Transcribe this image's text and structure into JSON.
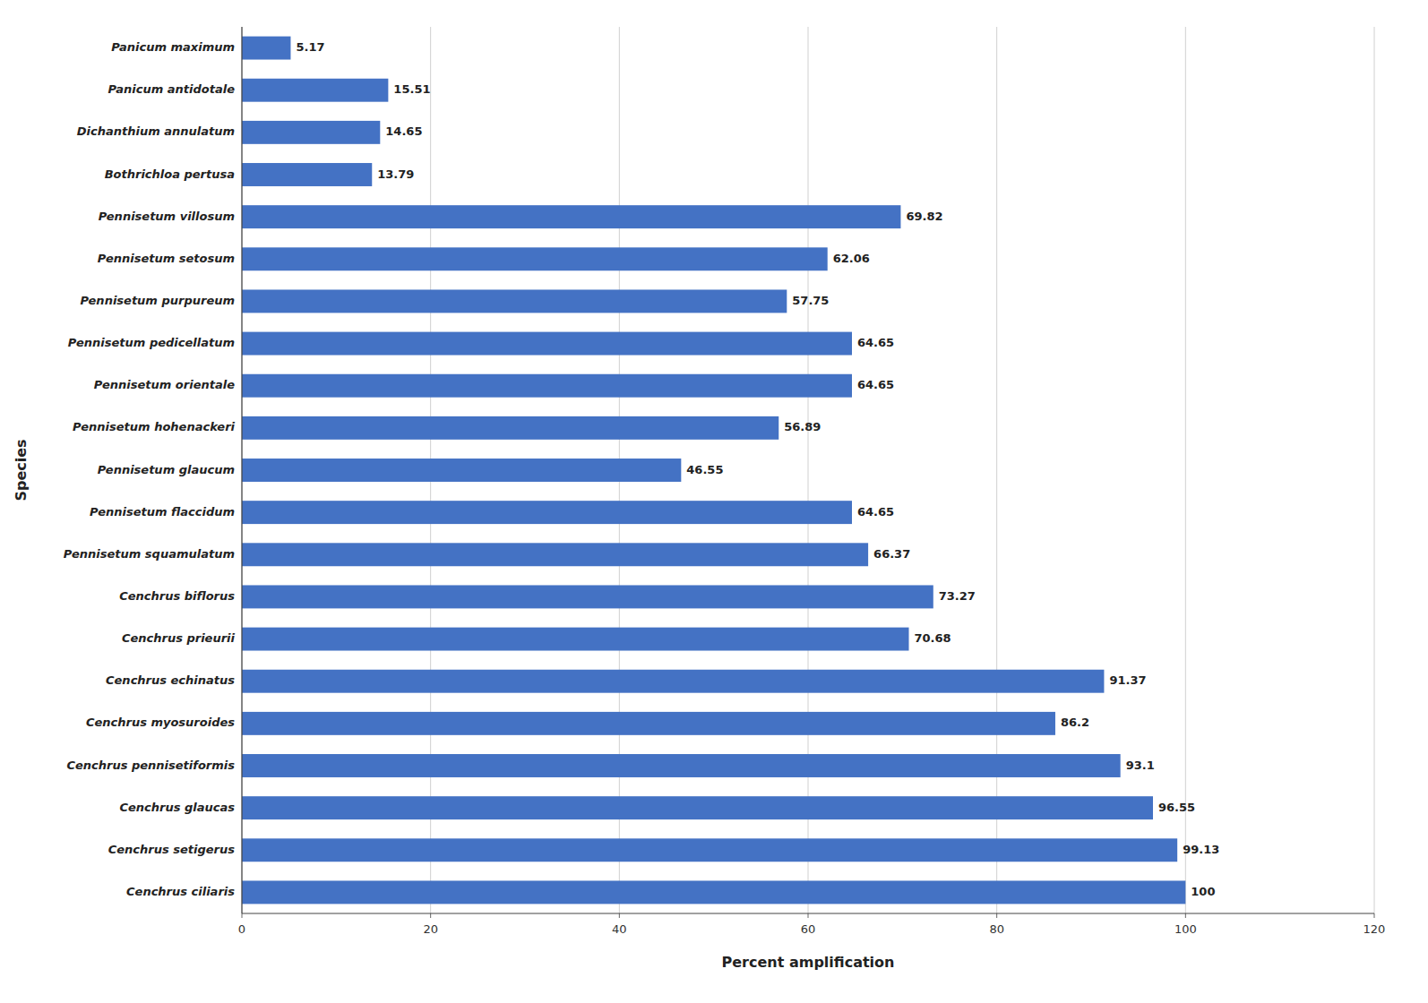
{
  "chart_data": {
    "type": "bar",
    "orientation": "horizontal",
    "categories": [
      "Cenchrus ciliaris",
      "Cenchrus setigerus",
      "Cenchrus glaucas",
      "Cenchrus pennisetiformis",
      "Cenchrus myosuroides",
      "Cenchrus echinatus",
      "Cenchrus prieurii",
      "Cenchrus biflorus",
      "Pennisetum squamulatum",
      "Pennisetum flaccidum",
      "Pennisetum glaucum",
      "Pennisetum hohenackeri",
      "Pennisetum orientale",
      "Pennisetum pedicellatum",
      "Pennisetum purpureum",
      "Pennisetum setosum",
      "Pennisetum villosum",
      "Bothrichloa pertusa",
      "Dichanthium annulatum",
      "Panicum antidotale",
      "Panicum maximum"
    ],
    "values": [
      100,
      99.13,
      96.55,
      93.1,
      86.2,
      91.37,
      70.68,
      73.27,
      66.37,
      64.65,
      46.55,
      56.89,
      64.65,
      64.65,
      57.75,
      62.06,
      69.82,
      13.79,
      14.65,
      15.51,
      5.17
    ],
    "color": "#4472C4",
    "xlabel": "Percent amplification",
    "ylabel": "Species",
    "xlim": [
      0,
      120
    ],
    "xticks": [
      0,
      20,
      40,
      60,
      80,
      100,
      120
    ],
    "grid": true,
    "data_labels": true
  }
}
